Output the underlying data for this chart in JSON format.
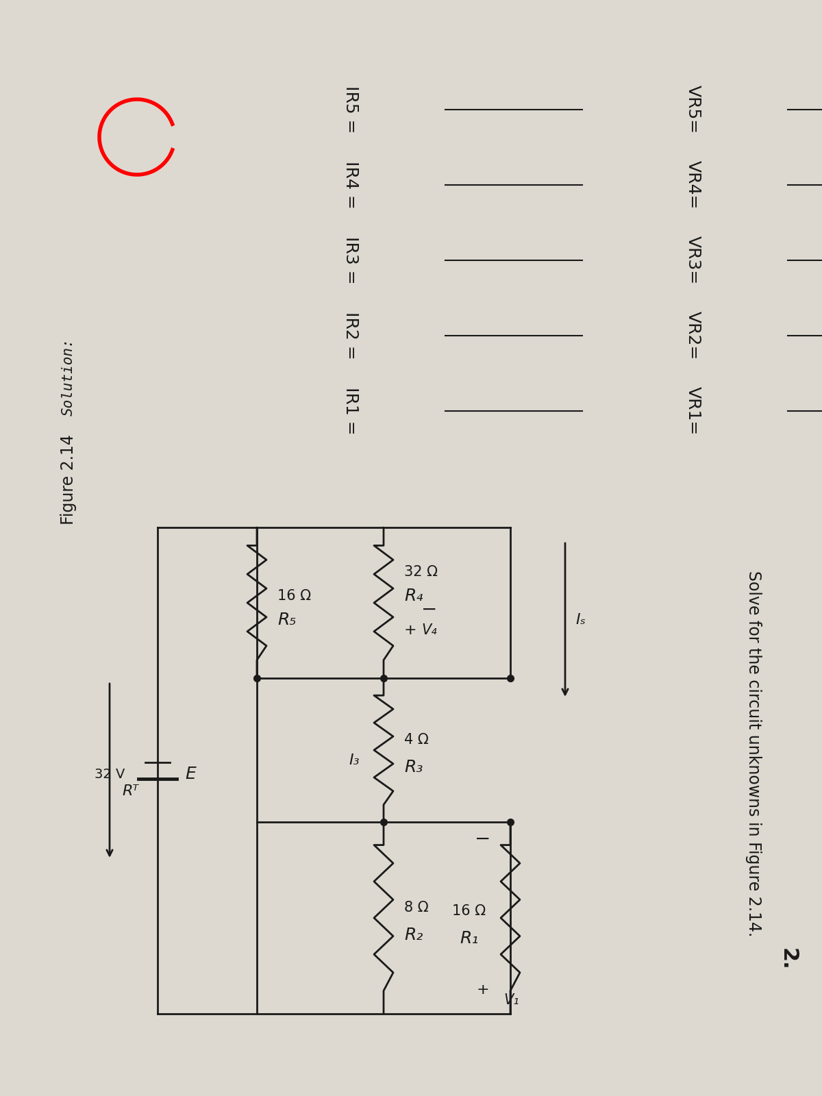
{
  "bg_color": "#ddd9d0",
  "black": "#1a1a1a",
  "problem_number": "2.",
  "problem_text": "Solve for the circuit unknowns in Figure 2.14.",
  "figure_label": "Figure 2.14",
  "solution_label": "Solution:",
  "circuit": {
    "R1_label": "R₁",
    "R1_val": "16 Ω",
    "R2_label": "R₂",
    "R2_val": "8 Ω",
    "R3_label": "R₃",
    "R3_val": "4 Ω",
    "R4_label": "R₄",
    "R4_val": "32 Ω",
    "R5_label": "R₅",
    "R5_val": "16 Ω",
    "E_val": "32 V",
    "E_label": "E",
    "RT_label": "Rᵀ",
    "I3_label": "I₃",
    "Is_label": "Iₛ",
    "V1_plus": "+",
    "V1_label": "V₁",
    "V1_minus": "−",
    "V4_plus": "+",
    "V4_label": "V₄",
    "V4_minus": "−"
  },
  "unknowns_left": [
    "IR1 =",
    "IR2 =",
    "IR3 =",
    "IR4 =",
    "IR5 ="
  ],
  "unknowns_right": [
    "VR1=",
    "VR2=",
    "VR3=",
    "VR4=",
    "VR5="
  ]
}
